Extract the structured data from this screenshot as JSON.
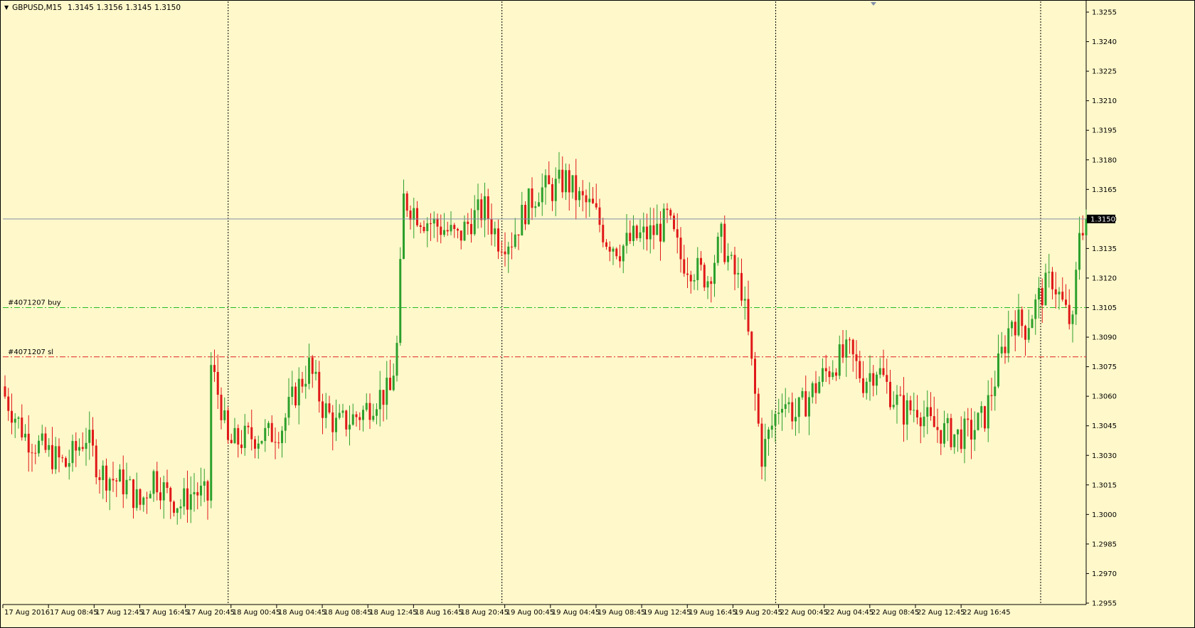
{
  "window": {
    "symbol": "GBPUSD,M15",
    "ohlc": [
      "1.3145",
      "1.3156",
      "1.3145",
      "1.3150"
    ]
  },
  "current_price": "1.3150",
  "trade_lines": [
    {
      "label": "#4071207 buy",
      "value": 1.3105,
      "color": "#22bb22"
    },
    {
      "label": "#4071207 sl",
      "value": 1.308,
      "color": "#e02020"
    }
  ],
  "colors": {
    "background": "#fff8ca",
    "bull": "#2ca02c",
    "bear": "#e01919",
    "bid_line": "#8090a8"
  },
  "chart_data": {
    "type": "candlestick",
    "ylim": [
      1.295,
      1.326
    ],
    "y_ticks": [
      "1.3255",
      "1.3240",
      "1.3225",
      "1.3210",
      "1.3195",
      "1.3180",
      "1.3165",
      "1.3150",
      "1.3135",
      "1.3120",
      "1.3105",
      "1.3090",
      "1.3075",
      "1.3060",
      "1.3045",
      "1.3030",
      "1.3015",
      "1.3000",
      "1.2985",
      "1.2970",
      "1.2955"
    ],
    "x_ticks": [
      "17 Aug 2016",
      "17 Aug 08:45",
      "17 Aug 12:45",
      "17 Aug 16:45",
      "17 Aug 20:45",
      "18 Aug 00:45",
      "18 Aug 04:45",
      "18 Aug 08:45",
      "18 Aug 12:45",
      "18 Aug 16:45",
      "18 Aug 20:45",
      "19 Aug 00:45",
      "19 Aug 04:45",
      "19 Aug 08:45",
      "19 Aug 12:45",
      "19 Aug 16:45",
      "19 Aug 20:45",
      "22 Aug 00:45",
      "22 Aug 04:45",
      "22 Aug 08:45",
      "22 Aug 12:45",
      "22 Aug 16:45"
    ],
    "period_separators": [
      "18 Aug 00:45",
      "19 Aug 00:45",
      "22 Aug 00:45"
    ],
    "close_path": [
      [
        0,
        1.306
      ],
      [
        6,
        1.304
      ],
      [
        12,
        1.3032
      ],
      [
        18,
        1.3025
      ],
      [
        24,
        1.304
      ],
      [
        28,
        1.3022
      ],
      [
        32,
        1.3018
      ],
      [
        36,
        1.3015
      ],
      [
        40,
        1.3005
      ],
      [
        44,
        1.302
      ],
      [
        48,
        1.301
      ],
      [
        52,
        1.3005
      ],
      [
        56,
        1.3012
      ],
      [
        60,
        1.3008
      ],
      [
        61,
        1.3075
      ],
      [
        64,
        1.3055
      ],
      [
        66,
        1.3035
      ],
      [
        70,
        1.3038
      ],
      [
        74,
        1.304
      ],
      [
        78,
        1.304
      ],
      [
        82,
        1.3045
      ],
      [
        86,
        1.3062
      ],
      [
        90,
        1.3075
      ],
      [
        94,
        1.3055
      ],
      [
        98,
        1.3045
      ],
      [
        102,
        1.3048
      ],
      [
        106,
        1.3052
      ],
      [
        110,
        1.306
      ],
      [
        114,
        1.3062
      ],
      [
        116,
        1.3085
      ],
      [
        118,
        1.316
      ],
      [
        124,
        1.315
      ],
      [
        130,
        1.3145
      ],
      [
        134,
        1.314
      ],
      [
        138,
        1.315
      ],
      [
        142,
        1.3155
      ],
      [
        146,
        1.314
      ],
      [
        150,
        1.314
      ],
      [
        154,
        1.3155
      ],
      [
        158,
        1.3165
      ],
      [
        162,
        1.3165
      ],
      [
        166,
        1.317
      ],
      [
        170,
        1.316
      ],
      [
        174,
        1.3155
      ],
      [
        178,
        1.314
      ],
      [
        182,
        1.3135
      ],
      [
        186,
        1.314
      ],
      [
        190,
        1.3142
      ],
      [
        194,
        1.3145
      ],
      [
        196,
        1.315
      ],
      [
        200,
        1.313
      ],
      [
        204,
        1.3125
      ],
      [
        208,
        1.312
      ],
      [
        212,
        1.314
      ],
      [
        215,
        1.3125
      ],
      [
        218,
        1.3115
      ],
      [
        220,
        1.309
      ],
      [
        222,
        1.306
      ],
      [
        224,
        1.303
      ],
      [
        226,
        1.304
      ],
      [
        230,
        1.306
      ],
      [
        234,
        1.305
      ],
      [
        238,
        1.306
      ],
      [
        242,
        1.307
      ],
      [
        246,
        1.3078
      ],
      [
        250,
        1.3082
      ],
      [
        252,
        1.3075
      ],
      [
        254,
        1.3068
      ],
      [
        258,
        1.3075
      ],
      [
        262,
        1.3062
      ],
      [
        266,
        1.3052
      ],
      [
        270,
        1.3055
      ],
      [
        274,
        1.3045
      ],
      [
        278,
        1.3042
      ],
      [
        282,
        1.304
      ],
      [
        286,
        1.3042
      ],
      [
        290,
        1.305
      ],
      [
        294,
        1.3075
      ],
      [
        298,
        1.31
      ],
      [
        302,
        1.3095
      ],
      [
        306,
        1.311
      ],
      [
        310,
        1.312
      ],
      [
        314,
        1.3102
      ],
      [
        316,
        1.3095
      ],
      [
        318,
        1.3145
      ],
      [
        320,
        1.315
      ]
    ]
  }
}
